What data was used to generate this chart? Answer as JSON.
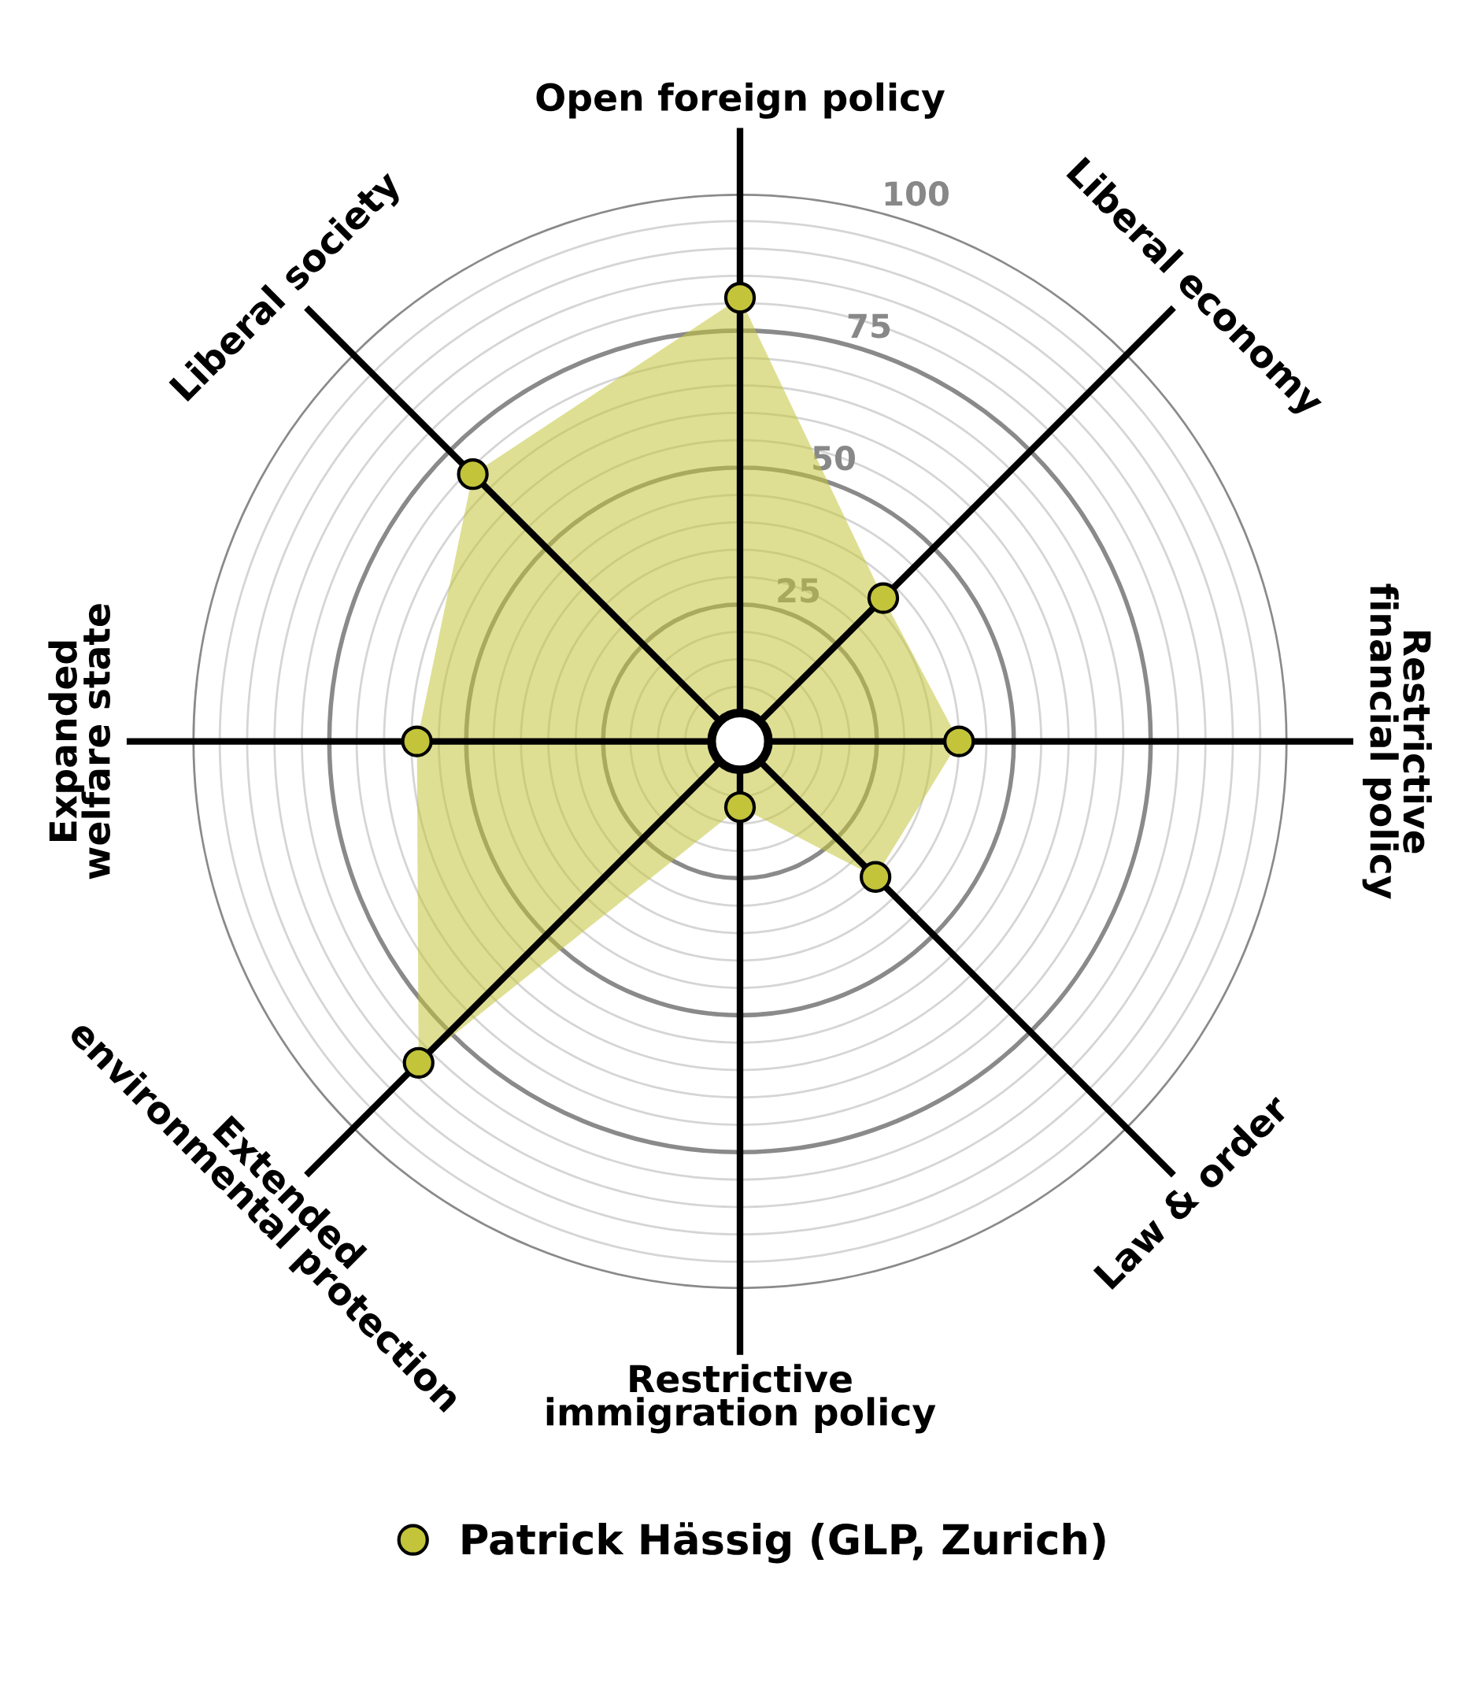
{
  "chart_data": {
    "type": "radar",
    "categories": [
      "Open foreign policy",
      "Liberal economy",
      "Restrictive\nfinancial policy",
      "Law & order",
      "Restrictive\nimmigration policy",
      "Extended\nenvironmental protection",
      "Expanded\nwelfare state",
      "Liberal society"
    ],
    "series": [
      {
        "name": "Patrick Hässig (GLP, Zurich)",
        "color": "#c3c43a",
        "values": [
          81,
          37,
          40,
          35,
          12,
          83,
          59,
          69
        ]
      }
    ],
    "ylim": [
      0,
      100
    ],
    "yticks": [
      25,
      50,
      75,
      100
    ],
    "grid": true,
    "legend": "bottom",
    "marker": "circle"
  }
}
